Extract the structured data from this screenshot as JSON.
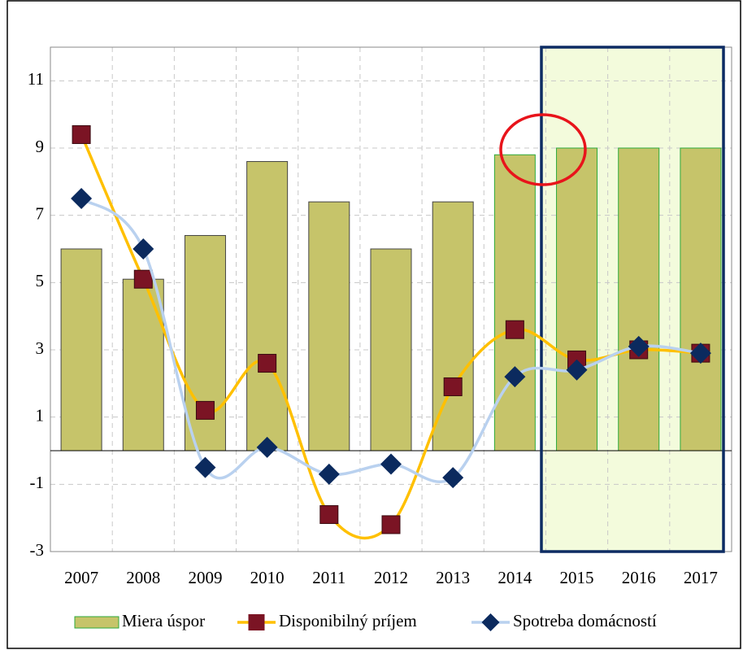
{
  "chart_data": {
    "type": "bar_line",
    "categories": [
      "2007",
      "2008",
      "2009",
      "2010",
      "2011",
      "2012",
      "2013",
      "2014",
      "2015",
      "2016",
      "2017"
    ],
    "series": [
      {
        "name": "Miera úspor",
        "type": "bar",
        "color": "#c6c46a",
        "edgecolors": [
          "#444444",
          "#444444",
          "#444444",
          "#444444",
          "#444444",
          "#444444",
          "#444444",
          "#2eaa3c",
          "#2eaa3c",
          "#2eaa3c",
          "#2eaa3c"
        ],
        "values": [
          6.0,
          5.1,
          6.4,
          8.6,
          7.4,
          6.0,
          7.4,
          8.8,
          9.0,
          9.0,
          9.0
        ]
      },
      {
        "name": "Disponibilný príjem",
        "type": "line",
        "color": "#ffc000",
        "marker_color": "#7b1424",
        "marker": "square",
        "values": [
          9.4,
          5.1,
          1.2,
          2.6,
          -1.9,
          -2.2,
          1.9,
          3.6,
          2.7,
          3.0,
          2.9
        ]
      },
      {
        "name": "Spotreba domácností",
        "type": "line",
        "color": "#b9d1ef",
        "marker_color": "#0b2a5e",
        "marker": "diamond",
        "values": [
          7.5,
          6.0,
          -0.5,
          0.1,
          -0.7,
          -0.4,
          -0.8,
          2.2,
          2.4,
          3.1,
          2.9
        ]
      }
    ],
    "ylim": [
      -3,
      12
    ],
    "yticks": [
      -3,
      -1,
      1,
      3,
      5,
      7,
      9,
      11
    ],
    "grid": true
  }
}
